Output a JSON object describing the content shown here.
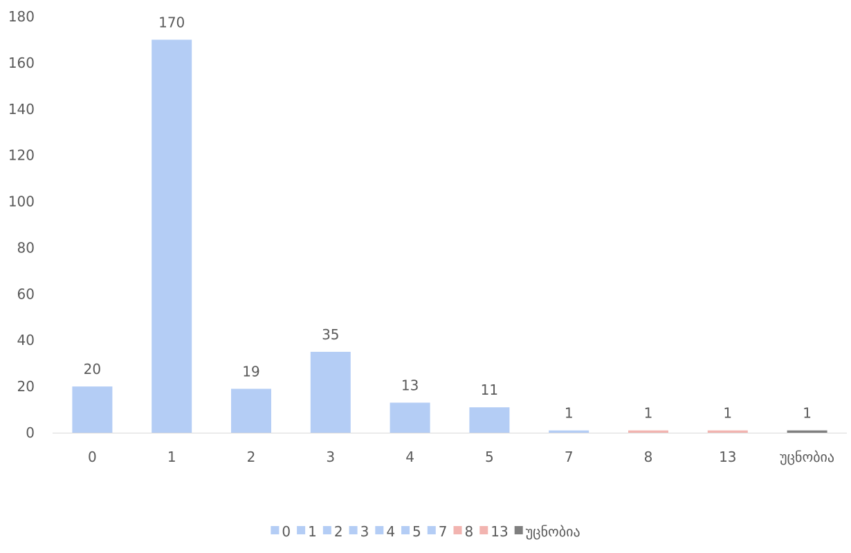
{
  "chart_data": {
    "type": "bar",
    "title": "",
    "xlabel": "",
    "ylabel": "",
    "categories": [
      "0",
      "1",
      "2",
      "3",
      "4",
      "5",
      "7",
      "8",
      "13",
      "უცნობია"
    ],
    "values": [
      20,
      170,
      19,
      35,
      13,
      11,
      1,
      1,
      1,
      1
    ],
    "data_labels": [
      "20",
      "170",
      "19",
      "35",
      "13",
      "11",
      "1",
      "1",
      "1",
      "1"
    ],
    "colors": [
      "#B4CDF5",
      "#B4CDF5",
      "#B4CDF5",
      "#B4CDF5",
      "#B4CDF5",
      "#B4CDF5",
      "#B4CDF5",
      "#F2B4B0",
      "#F2B4B0",
      "#7F7F7F"
    ],
    "ylim": [
      0,
      180
    ],
    "yticks": [
      0,
      20,
      40,
      60,
      80,
      100,
      120,
      140,
      160,
      180
    ],
    "grid": false,
    "legend": {
      "position": "bottom",
      "entries": [
        "0",
        "1",
        "2",
        "3",
        "4",
        "5",
        "7",
        "8",
        "13",
        "უცნობია"
      ]
    }
  }
}
